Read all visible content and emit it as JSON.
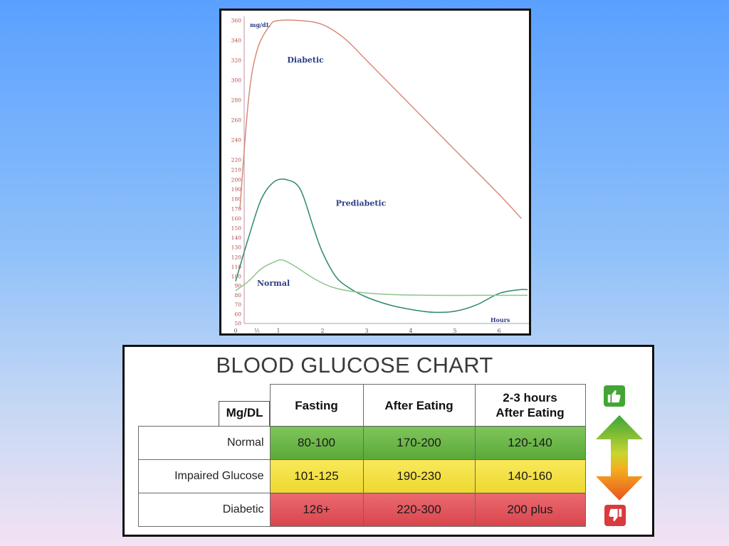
{
  "chart_data": [
    {
      "type": "line",
      "title": "",
      "xlabel": "Hours",
      "ylabel": "mg/dL",
      "x_ticks": [
        "0",
        "½",
        "1",
        "2",
        "3",
        "4",
        "5",
        "6"
      ],
      "y_ticks": [
        50,
        60,
        70,
        80,
        90,
        100,
        110,
        120,
        130,
        140,
        150,
        160,
        170,
        180,
        190,
        200,
        210,
        220,
        240,
        260,
        280,
        300,
        320,
        340,
        360
      ],
      "ylim": [
        50,
        360
      ],
      "xlim": [
        0,
        6.7
      ],
      "grid": false,
      "legend": "none",
      "series": [
        {
          "name": "Diabetic",
          "color": "#d98a7a",
          "points": [
            [
              0.1,
              170
            ],
            [
              0.3,
              280
            ],
            [
              0.5,
              330
            ],
            [
              0.8,
              355
            ],
            [
              1.0,
              360
            ],
            [
              1.5,
              360
            ],
            [
              2.0,
              356
            ],
            [
              2.5,
              342
            ],
            [
              3.0,
              320
            ],
            [
              4.0,
              275
            ],
            [
              5.0,
              230
            ],
            [
              6.0,
              185
            ],
            [
              6.55,
              160
            ]
          ]
        },
        {
          "name": "Prediabetic",
          "color": "#2e8a6a",
          "points": [
            [
              0.0,
              95
            ],
            [
              0.3,
              140
            ],
            [
              0.6,
              180
            ],
            [
              0.9,
              198
            ],
            [
              1.2,
              200
            ],
            [
              1.5,
              190
            ],
            [
              1.8,
              150
            ],
            [
              2.0,
              125
            ],
            [
              2.3,
              100
            ],
            [
              2.6,
              88
            ],
            [
              3.0,
              78
            ],
            [
              3.5,
              70
            ],
            [
              4.0,
              65
            ],
            [
              4.5,
              62
            ],
            [
              5.0,
              63
            ],
            [
              5.5,
              70
            ],
            [
              6.0,
              82
            ],
            [
              6.5,
              86
            ],
            [
              6.7,
              86
            ]
          ]
        },
        {
          "name": "Normal",
          "color": "#8cc68a",
          "points": [
            [
              0.0,
              85
            ],
            [
              0.3,
              95
            ],
            [
              0.6,
              108
            ],
            [
              0.9,
              115
            ],
            [
              1.1,
              117
            ],
            [
              1.4,
              110
            ],
            [
              1.8,
              98
            ],
            [
              2.2,
              89
            ],
            [
              2.7,
              84
            ],
            [
              3.5,
              81
            ],
            [
              4.5,
              80
            ],
            [
              5.5,
              80
            ],
            [
              6.0,
              80
            ],
            [
              6.7,
              80
            ]
          ]
        }
      ]
    },
    {
      "type": "table",
      "title": "BLOOD GLUCOSE CHART",
      "units_label": "Mg/DL",
      "columns": [
        {
          "line1": "Fasting",
          "line2": ""
        },
        {
          "line1": "After Eating",
          "line2": ""
        },
        {
          "line1": "2-3 hours",
          "line2": "After Eating"
        }
      ],
      "rows": [
        {
          "label": "Normal",
          "status": "good",
          "color": "#5aa83a",
          "values": [
            "80-100",
            "170-200",
            "120-140"
          ]
        },
        {
          "label": "Impaired Glucose",
          "status": "borderline",
          "color": "#eed730",
          "values": [
            "101-125",
            "190-230",
            "140-160"
          ]
        },
        {
          "label": "Diabetic",
          "status": "high",
          "color": "#d9444c",
          "values": [
            "126+",
            "220-300",
            "200 plus"
          ]
        }
      ],
      "indicators": {
        "top_icon": "thumbs-up-icon",
        "middle_icon": "double-arrow-icon",
        "bottom_icon": "thumbs-down-icon"
      }
    }
  ]
}
